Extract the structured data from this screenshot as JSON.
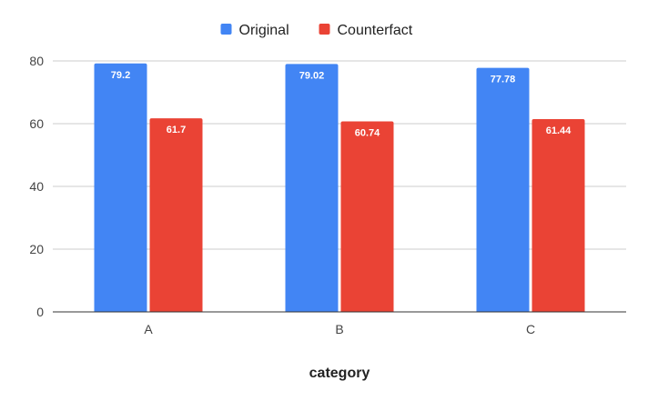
{
  "chart_data": {
    "type": "bar",
    "categories": [
      "A",
      "B",
      "C"
    ],
    "series": [
      {
        "name": "Original",
        "values": [
          79.2,
          79.02,
          77.78
        ],
        "labels": [
          "79.2",
          "79.02",
          "77.78"
        ],
        "color": "#4285f4"
      },
      {
        "name": "Counterfact",
        "values": [
          61.7,
          60.74,
          61.44
        ],
        "labels": [
          "61.7",
          "60.74",
          "61.44"
        ],
        "color": "#ea4335"
      }
    ],
    "xlabel": "category",
    "ylabel": "",
    "ylim": [
      0,
      80
    ],
    "yticks": [
      "0",
      "20",
      "40",
      "60",
      "80"
    ],
    "grid": true,
    "legend_position": "top-center",
    "gridline_color": "#cccccc",
    "axis_color": "#333333"
  }
}
